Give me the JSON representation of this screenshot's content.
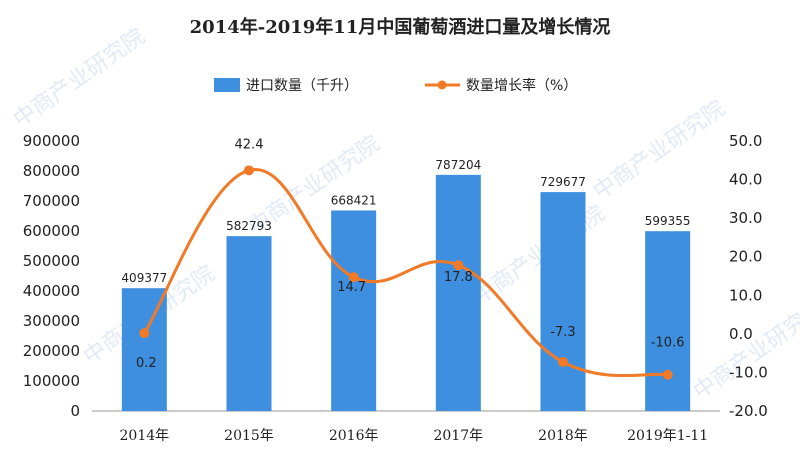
{
  "chart_data": {
    "type": "bar",
    "title": "2014年-2019年11月中国葡萄酒进口量及增长情况",
    "categories": [
      "2014年",
      "2015年",
      "2016年",
      "2017年",
      "2018年",
      "2019年1-11"
    ],
    "series": [
      {
        "name": "进口数量（千升）",
        "type": "bar",
        "axis": "left",
        "color": "#3e8fe0",
        "values": [
          409377,
          582793,
          668421,
          787204,
          729677,
          599355
        ],
        "labels": [
          "409377",
          "582793",
          "668421",
          "787204",
          "729677",
          "599355"
        ]
      },
      {
        "name": "数量增长率（%）",
        "type": "line",
        "axis": "right",
        "color": "#f07a27",
        "values": [
          0.2,
          42.4,
          14.7,
          17.8,
          -7.3,
          -10.6
        ],
        "labels": [
          "0.2",
          "42.4",
          "14.7",
          "17.8",
          "-7.3",
          "-10.6"
        ]
      }
    ],
    "left_axis": {
      "ylim": [
        0,
        900000
      ],
      "ticks": [
        "0",
        "100000",
        "200000",
        "300000",
        "400000",
        "500000",
        "600000",
        "700000",
        "800000",
        "900000"
      ]
    },
    "right_axis": {
      "ylim": [
        -20,
        50
      ],
      "ticks": [
        "-20.0",
        "-10.0",
        "0.0",
        "10.0",
        "20.0",
        "30.0",
        "40.0",
        "50.0"
      ]
    },
    "legend_position": "top-center",
    "grid": false
  },
  "watermark_text": "中商产业研究院"
}
